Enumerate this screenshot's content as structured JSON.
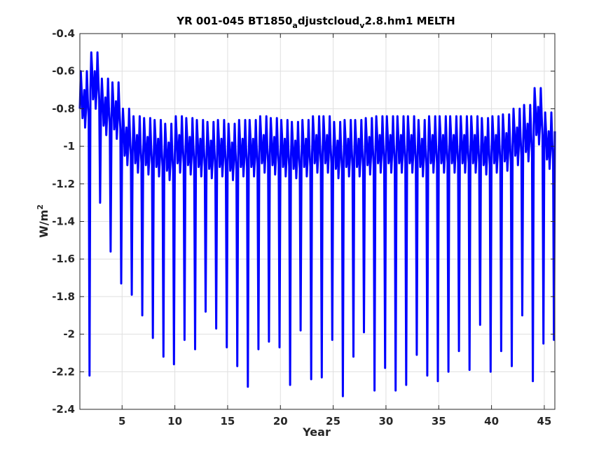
{
  "chart_data": {
    "type": "line",
    "title_parts": {
      "a": "YR 001-045 BT1850",
      "b": "a",
      "c": "djustcloud",
      "d": "v",
      "e": "2.8.hm1 MELTH"
    },
    "xlabel": "Year",
    "ylabel_parts": {
      "base": "W/m",
      "sup": "2"
    },
    "xlim": [
      1,
      46
    ],
    "ylim": [
      -2.4,
      -0.4
    ],
    "xticks": [
      5,
      10,
      15,
      20,
      25,
      30,
      35,
      40,
      45
    ],
    "xtick_labels": [
      "5",
      "10",
      "15",
      "20",
      "25",
      "30",
      "35",
      "40",
      "45"
    ],
    "yticks": [
      -2.4,
      -2.2,
      -2.0,
      -1.8,
      -1.6,
      -1.4,
      -1.2,
      -1.0,
      -0.8,
      -0.6,
      -0.4
    ],
    "ytick_labels": [
      "-2.4",
      "-2.2",
      "-2",
      "-1.8",
      "-1.6",
      "-1.4",
      "-1.2",
      "-1",
      "-0.8",
      "-0.6",
      "-0.4"
    ],
    "grid": true,
    "line_color": "#0000ff",
    "annual_cycle": {
      "points_per_year": 12,
      "shape": [
        -0.05,
        0.1,
        0.05,
        -0.1,
        -0.05,
        0.05,
        -0.15,
        -0.05,
        0.1,
        0.0,
        -0.1,
        -1.0
      ]
    },
    "years": [
      1,
      2,
      3,
      4,
      5,
      6,
      7,
      8,
      9,
      10,
      11,
      12,
      13,
      14,
      15,
      16,
      17,
      18,
      19,
      20,
      21,
      22,
      23,
      24,
      25,
      26,
      27,
      28,
      29,
      30,
      31,
      32,
      33,
      34,
      35,
      36,
      37,
      38,
      39,
      40,
      41,
      42,
      43,
      44,
      45
    ],
    "annual_max": [
      -0.6,
      -0.5,
      -0.64,
      -0.66,
      -0.8,
      -0.84,
      -0.85,
      -0.86,
      -0.88,
      -0.84,
      -0.85,
      -0.86,
      -0.87,
      -0.86,
      -0.88,
      -0.86,
      -0.86,
      -0.84,
      -0.85,
      -0.86,
      -0.87,
      -0.86,
      -0.84,
      -0.84,
      -0.87,
      -0.86,
      -0.86,
      -0.85,
      -0.84,
      -0.84,
      -0.84,
      -0.84,
      -0.86,
      -0.84,
      -0.84,
      -0.84,
      -0.84,
      -0.84,
      -0.85,
      -0.84,
      -0.83,
      -0.8,
      -0.78,
      -0.69,
      -0.82
    ],
    "annual_min": [
      -2.22,
      -1.3,
      -1.56,
      -1.73,
      -1.79,
      -1.9,
      -2.02,
      -2.12,
      -2.16,
      -2.03,
      -2.08,
      -1.88,
      -1.97,
      -2.07,
      -2.17,
      -2.28,
      -2.08,
      -2.04,
      -2.07,
      -2.27,
      -1.98,
      -2.24,
      -2.23,
      -2.03,
      -2.33,
      -2.12,
      -1.99,
      -2.3,
      -2.18,
      -2.3,
      -2.27,
      -2.11,
      -2.22,
      -2.25,
      -2.2,
      -2.09,
      -2.19,
      -1.95,
      -2.2,
      -2.09,
      -2.17,
      -1.9,
      -2.25,
      -2.05,
      -2.03
    ]
  }
}
